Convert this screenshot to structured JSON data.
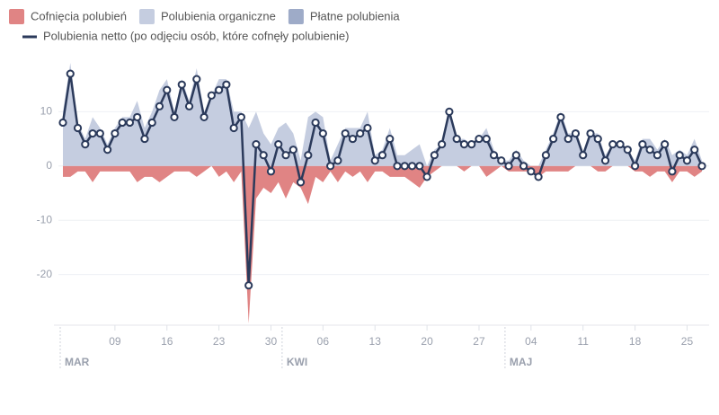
{
  "chart_data": {
    "type": "area",
    "categories": [
      null,
      null,
      null,
      null,
      null,
      null,
      null,
      "09",
      null,
      null,
      null,
      null,
      null,
      null,
      "16",
      null,
      null,
      null,
      null,
      null,
      null,
      "23",
      null,
      null,
      null,
      null,
      null,
      null,
      "30",
      null,
      null,
      null,
      null,
      null,
      null,
      "06",
      null,
      null,
      null,
      null,
      null,
      null,
      "13",
      null,
      null,
      null,
      null,
      null,
      null,
      "20",
      null,
      null,
      null,
      null,
      null,
      null,
      "27",
      null,
      null,
      null,
      null,
      null,
      null,
      "04",
      null,
      null,
      null,
      null,
      null,
      null,
      "11",
      null,
      null,
      null,
      null,
      null,
      null,
      "18",
      null,
      null,
      null,
      null,
      null,
      null,
      "25",
      null,
      null
    ],
    "months": [
      "MAR",
      "KWI",
      "MAJ"
    ],
    "series": [
      {
        "name": "Cofnięcia polubień",
        "color": "#e08484",
        "style": "area",
        "values": [
          -2,
          -2,
          -1,
          -1,
          -3,
          -1,
          -1,
          -1,
          -1,
          -1,
          -3,
          -2,
          -2,
          -3,
          -2,
          -1,
          -1,
          -1,
          -2,
          -1,
          0,
          -2,
          -1,
          -3,
          -1,
          -29,
          -6,
          -4,
          -5,
          -3,
          -6,
          -3,
          -4,
          -7,
          -2,
          -3,
          -1,
          -3,
          -1,
          -2,
          -1,
          -3,
          -1,
          -1,
          -2,
          -2,
          -2,
          -3,
          -4,
          -2,
          -1,
          0,
          0,
          0,
          -1,
          0,
          0,
          -2,
          -1,
          0,
          -1,
          -1,
          -1,
          -1,
          -2,
          -1,
          -1,
          -1,
          -1,
          0,
          0,
          0,
          -1,
          -1,
          0,
          0,
          0,
          -1,
          -1,
          -2,
          -1,
          -1,
          -3,
          -1,
          -1,
          -2,
          -1
        ]
      },
      {
        "name": "Polubienia organiczne",
        "color": "#c5cde0",
        "style": "area",
        "values": [
          10,
          19,
          8,
          5,
          9,
          7,
          4,
          7,
          9,
          9,
          12,
          7,
          10,
          14,
          16,
          10,
          16,
          12,
          18,
          10,
          13,
          16,
          16,
          10,
          10,
          7,
          10,
          6,
          4,
          7,
          8,
          6,
          1,
          9,
          10,
          9,
          1,
          4,
          7,
          7,
          7,
          10,
          2,
          3,
          7,
          2,
          2,
          3,
          4,
          0,
          3,
          4,
          10,
          5,
          5,
          4,
          5,
          7,
          3,
          1,
          1,
          3,
          1,
          0,
          0,
          3,
          6,
          10,
          6,
          6,
          2,
          6,
          6,
          2,
          4,
          4,
          3,
          1,
          5,
          5,
          3,
          5,
          2,
          3,
          2,
          5,
          1
        ]
      },
      {
        "name": "Płatne polubienia",
        "color": "#9eabc8",
        "style": "area",
        "values": [
          0,
          0,
          0,
          0,
          0,
          0,
          0,
          0,
          0,
          0,
          0,
          0,
          0,
          0,
          0,
          0,
          0,
          0,
          0,
          0,
          0,
          0,
          0,
          0,
          0,
          0,
          0,
          0,
          0,
          0,
          0,
          0,
          0,
          0,
          0,
          0,
          0,
          0,
          0,
          0,
          0,
          0,
          0,
          0,
          0,
          0,
          0,
          0,
          0,
          0,
          0,
          0,
          0,
          0,
          0,
          0,
          0,
          0,
          0,
          0,
          0,
          0,
          0,
          0,
          0,
          0,
          0,
          0,
          0,
          0,
          0,
          0,
          0,
          0,
          0,
          0,
          0,
          0,
          0,
          0,
          0,
          0,
          0,
          0,
          0,
          0,
          0
        ]
      },
      {
        "name": "Polubienia netto (po odjęciu osób, które cofnęły polubienie)",
        "color": "#2b3a5b",
        "style": "line",
        "values": [
          8,
          17,
          7,
          4,
          6,
          6,
          3,
          6,
          8,
          8,
          9,
          5,
          8,
          11,
          14,
          9,
          15,
          11,
          16,
          9,
          13,
          14,
          15,
          7,
          9,
          -22,
          4,
          2,
          -1,
          4,
          2,
          3,
          -3,
          2,
          8,
          6,
          0,
          1,
          6,
          5,
          6,
          7,
          1,
          2,
          5,
          0,
          0,
          0,
          0,
          -2,
          2,
          4,
          10,
          5,
          4,
          4,
          5,
          5,
          2,
          1,
          0,
          2,
          0,
          -1,
          -2,
          2,
          5,
          9,
          5,
          6,
          2,
          6,
          5,
          1,
          4,
          4,
          3,
          0,
          4,
          3,
          2,
          4,
          -1,
          2,
          1,
          3,
          0
        ]
      }
    ],
    "ylim": [
      -29,
      19
    ],
    "yticks": [
      10,
      0,
      -10,
      -20
    ],
    "grid": true
  }
}
